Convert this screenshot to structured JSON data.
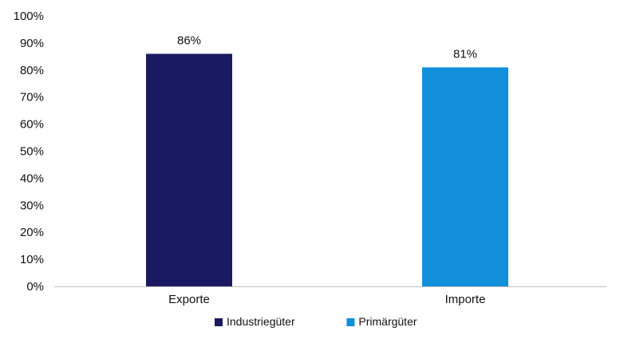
{
  "chart_data": {
    "type": "bar",
    "categories": [
      "Exporte",
      "Importe"
    ],
    "series": [
      {
        "name": "Industriegüter",
        "category": "Exporte",
        "value": 86,
        "label": "86%",
        "color": "#1a1a62"
      },
      {
        "name": "Primärgüter",
        "category": "Importe",
        "value": 81,
        "label": "81%",
        "color": "#128fdb"
      }
    ],
    "ylim": [
      0,
      100
    ],
    "ytick_values": [
      0,
      10,
      20,
      30,
      40,
      50,
      60,
      70,
      80,
      90,
      100
    ],
    "ytick_labels": [
      "0%",
      "10%",
      "20%",
      "30%",
      "40%",
      "50%",
      "60%",
      "70%",
      "80%",
      "90%",
      "100%"
    ],
    "grid": false,
    "legend_position": "bottom",
    "axis_color": "#bfbfbf"
  }
}
